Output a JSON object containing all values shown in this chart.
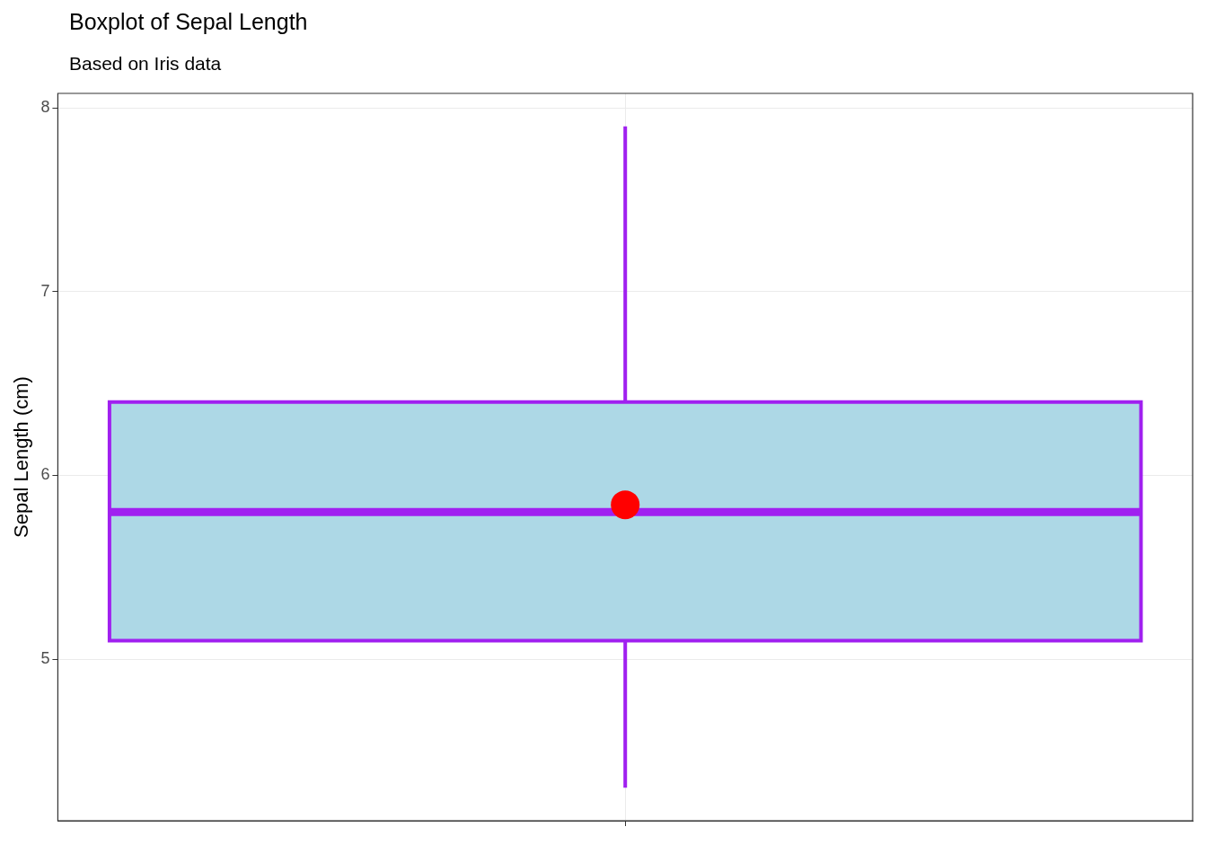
{
  "chart_data": {
    "type": "box",
    "title": "Boxplot of Sepal Length",
    "subtitle": "Based on Iris data",
    "ylabel": "Sepal Length (cm)",
    "categories": [
      null
    ],
    "series": [
      {
        "color": "#add8e6",
        "boxes": [
          {
            "low": 4.3,
            "q1": 5.1,
            "median": 5.8,
            "q3": 6.4,
            "high": 7.9,
            "mean": 5.84
          }
        ]
      }
    ],
    "ylim": [
      4.12,
      8.08
    ],
    "yticks": [
      5,
      6,
      7,
      8
    ],
    "tick_labels": "y",
    "grid": true,
    "legend": false
  }
}
